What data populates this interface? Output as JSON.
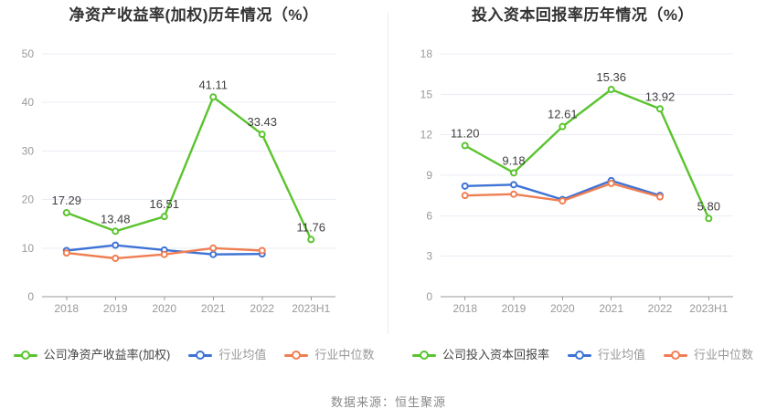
{
  "page": {
    "source_note": "数据来源：恒生聚源"
  },
  "colors": {
    "background": "#FFFFFF",
    "company_series": "#5AC42E",
    "industry_average_series": "#3E73D5",
    "industry_median_series": "#F07E52",
    "grid_line": "#E8EDF5",
    "axis_line": "#999999",
    "tick_text": "#999999",
    "data_label_text": "#404040",
    "title_text": "#333333",
    "legend_primary_text": "#444444",
    "legend_secondary_text": "#999999",
    "divider": "#ECECEC",
    "source_text": "#888888"
  },
  "chart_data": [
    {
      "type": "line",
      "title": "净资产收益率(加权)历年情况（%）",
      "categories": [
        "2018",
        "2019",
        "2020",
        "2021",
        "2022",
        "2023H1"
      ],
      "series": [
        {
          "name": "公司净资产收益率(加权)",
          "color": "#5AC42E",
          "values": [
            17.29,
            13.48,
            16.51,
            41.11,
            33.43,
            11.76
          ],
          "show_labels": true
        },
        {
          "name": "行业均值",
          "color": "#3E73D5",
          "values": [
            9.5,
            10.6,
            9.6,
            8.7,
            8.8,
            null
          ],
          "show_labels": false
        },
        {
          "name": "行业中位数",
          "color": "#F07E52",
          "values": [
            9.0,
            7.9,
            8.7,
            10.0,
            9.5,
            null
          ],
          "show_labels": false
        }
      ],
      "xlabel": "",
      "ylabel": "",
      "ylim": [
        0,
        50
      ],
      "yticks": [
        0,
        10,
        20,
        30,
        40,
        50
      ],
      "grid": true,
      "legend_position": "bottom"
    },
    {
      "type": "line",
      "title": "投入资本回报率历年情况（%）",
      "categories": [
        "2018",
        "2019",
        "2020",
        "2021",
        "2022",
        "2023H1"
      ],
      "series": [
        {
          "name": "公司投入资本回报率",
          "color": "#5AC42E",
          "values": [
            11.2,
            9.18,
            12.61,
            15.36,
            13.92,
            5.8
          ],
          "show_labels": true
        },
        {
          "name": "行业均值",
          "color": "#3E73D5",
          "values": [
            8.2,
            8.3,
            7.2,
            8.6,
            7.5,
            null
          ],
          "show_labels": false
        },
        {
          "name": "行业中位数",
          "color": "#F07E52",
          "values": [
            7.5,
            7.6,
            7.1,
            8.4,
            7.4,
            null
          ],
          "show_labels": false
        }
      ],
      "xlabel": "",
      "ylabel": "",
      "ylim": [
        0,
        18
      ],
      "yticks": [
        0,
        3,
        6,
        9,
        12,
        15,
        18
      ],
      "grid": true,
      "legend_position": "bottom"
    }
  ]
}
